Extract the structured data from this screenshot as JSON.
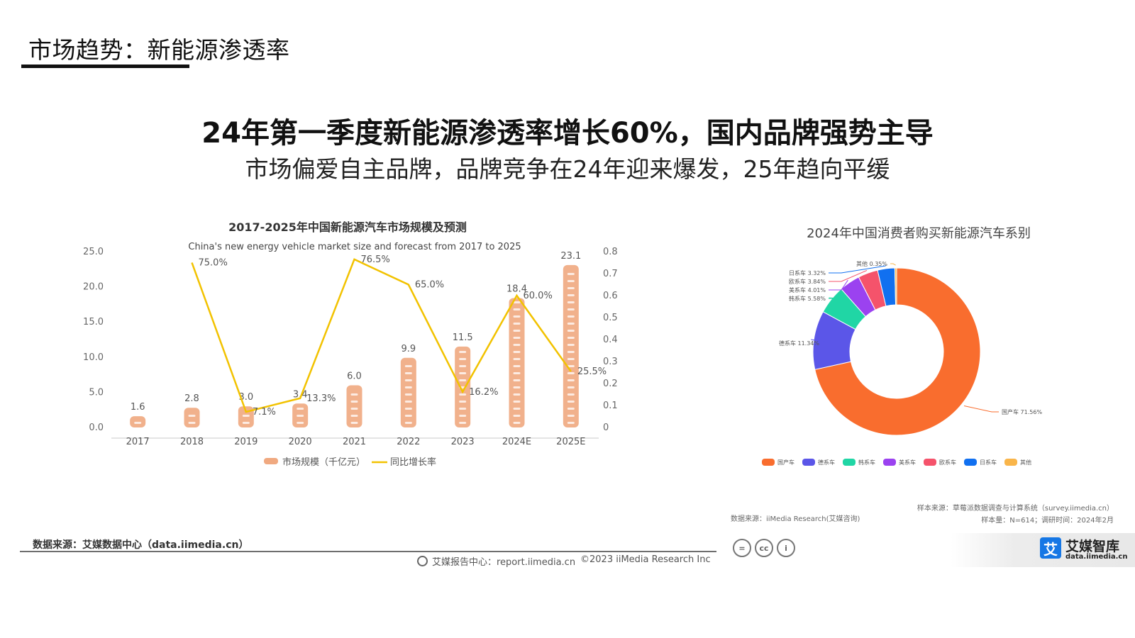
{
  "slide": {
    "section_title": "市场趋势：新能源渗透率",
    "headline": "24年第一季度新能源渗透率增长60%，国内品牌强势主导",
    "subheadline": "市场偏爱自主品牌，品牌竞争在24年迎来爆发，25年趋向平缓"
  },
  "footer": {
    "source_left": "数据来源：艾媒数据中心（data.iimedia.cn）",
    "report_center": "艾媒报告中心：report.iimedia.cn",
    "copyright": "©2023  iiMedia Research  Inc",
    "source_right": "数据来源：iiMedia Research(艾媒咨询)",
    "sample_source": "样本来源：草莓派数据调查与计算系统（survey.iimedia.cn）",
    "sample_size": "样本量：N=614；调研时间：2024年2月",
    "cc_icons": [
      "=",
      "cc",
      "i"
    ],
    "brand_logo_char": "艾",
    "brand_name": "艾媒智库",
    "brand_url": "data.iimedia.cn"
  },
  "chart_data": [
    {
      "type": "bar",
      "title": "2017-2025年中国新能源汽车市场规模及预测",
      "subtitle": "China's new energy vehicle market size and forecast from 2017 to 2025",
      "categories": [
        "2017",
        "2018",
        "2019",
        "2020",
        "2021",
        "2022",
        "2023",
        "2024E",
        "2025E"
      ],
      "series": [
        {
          "name": "市场规模（千亿元）",
          "type": "bar",
          "axis": "left",
          "values": [
            1.6,
            2.8,
            3.0,
            3.4,
            6.0,
            9.9,
            11.5,
            18.4,
            23.1
          ],
          "labels": [
            "1.6",
            "2.8",
            "3.0",
            "3.4",
            "6.0",
            "9.9",
            "11.5",
            "18.4",
            "23.1"
          ],
          "color": "#f0a980"
        },
        {
          "name": "同比增长率",
          "type": "line",
          "axis": "right",
          "values": [
            null,
            0.75,
            0.071,
            0.133,
            0.765,
            0.65,
            0.162,
            0.6,
            0.255
          ],
          "labels": [
            "",
            "75.0%",
            "7.1%",
            "13.3%",
            "76.5%",
            "65.0%",
            "16.2%",
            "60.0%",
            "25.5%"
          ],
          "color": "#f2c200"
        }
      ],
      "y_left_ticks": [
        "0.0",
        "5.0",
        "10.0",
        "15.0",
        "20.0",
        "25.0"
      ],
      "y_left_range": [
        0,
        25
      ],
      "y_right_ticks": [
        "0",
        "0.1",
        "0.2",
        "0.3",
        "0.4",
        "0.5",
        "0.6",
        "0.7",
        "0.8"
      ],
      "y_right_range": [
        0,
        0.8
      ],
      "legend_position": "bottom-center",
      "grid": false
    },
    {
      "type": "pie",
      "variant": "donut",
      "title": "2024年中国消费者购买新能源汽车系别",
      "slices": [
        {
          "name": "国产车",
          "value": 71.56,
          "label": "国产车 71.56%",
          "color": "#f96d2e"
        },
        {
          "name": "德系车",
          "value": 11.34,
          "label": "德系车 11.34%",
          "color": "#5b56e8"
        },
        {
          "name": "韩系车",
          "value": 5.58,
          "label": "韩系车 5.58%",
          "color": "#20d6a5"
        },
        {
          "name": "美系车",
          "value": 4.01,
          "label": "美系车 4.01%",
          "color": "#9b42f0"
        },
        {
          "name": "欧系车",
          "value": 3.84,
          "label": "欧系车 3.84%",
          "color": "#f5536b"
        },
        {
          "name": "日系车",
          "value": 3.32,
          "label": "日系车 3.32%",
          "color": "#1170f0"
        },
        {
          "name": "其他",
          "value": 0.35,
          "label": "其他 0.35%",
          "color": "#f9b54a"
        }
      ],
      "legend_position": "bottom-center"
    }
  ]
}
